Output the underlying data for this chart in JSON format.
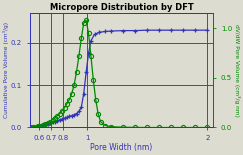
{
  "title": "Micropore Distribution by DFT",
  "xlabel": "Pore Width (nm)",
  "ylabel_left": "Cumulative Pore Volume (cm³/g)",
  "ylabel_right": "dV/dW Pore Volume (cm³/g nm)",
  "xlim": [
    0.52,
    2.05
  ],
  "ylim_left": [
    0.0,
    0.27
  ],
  "ylim_right": [
    0.0,
    1.15
  ],
  "yticks_left": [
    0.0,
    0.1,
    0.2
  ],
  "yticks_right": [
    0.0,
    0.5,
    1.0
  ],
  "xticks": [
    0.6,
    0.7,
    0.8,
    1.0,
    2.0
  ],
  "xticklabels": [
    "0.6",
    "0.7",
    "0.8",
    "1",
    "2"
  ],
  "blue_color": "#3333bb",
  "green_color": "#008800",
  "bg_color": "#dcdcd0",
  "grid_color": "#4444cc",
  "cumulative_x": [
    0.52,
    0.55,
    0.57,
    0.59,
    0.61,
    0.63,
    0.65,
    0.67,
    0.69,
    0.71,
    0.73,
    0.75,
    0.77,
    0.79,
    0.81,
    0.83,
    0.85,
    0.87,
    0.89,
    0.91,
    0.93,
    0.95,
    0.97,
    0.99,
    1.01,
    1.03,
    1.06,
    1.1,
    1.15,
    1.2,
    1.3,
    1.4,
    1.5,
    1.6,
    1.7,
    1.8,
    1.9,
    2.0
  ],
  "cumulative_y": [
    0.0,
    0.001,
    0.002,
    0.003,
    0.004,
    0.006,
    0.007,
    0.009,
    0.01,
    0.012,
    0.014,
    0.016,
    0.018,
    0.02,
    0.022,
    0.024,
    0.026,
    0.028,
    0.03,
    0.033,
    0.038,
    0.048,
    0.08,
    0.13,
    0.175,
    0.205,
    0.22,
    0.225,
    0.227,
    0.228,
    0.229,
    0.229,
    0.23,
    0.23,
    0.23,
    0.23,
    0.23,
    0.23
  ],
  "dvdw_x": [
    0.52,
    0.55,
    0.57,
    0.59,
    0.61,
    0.63,
    0.65,
    0.67,
    0.69,
    0.71,
    0.73,
    0.75,
    0.77,
    0.79,
    0.81,
    0.83,
    0.85,
    0.87,
    0.89,
    0.91,
    0.93,
    0.95,
    0.97,
    0.99,
    1.01,
    1.03,
    1.05,
    1.07,
    1.09,
    1.11,
    1.15,
    1.2,
    1.3,
    1.4,
    1.5,
    1.6,
    1.7,
    1.8,
    1.9,
    2.0
  ],
  "dvdw_y": [
    0.0,
    0.005,
    0.01,
    0.015,
    0.02,
    0.03,
    0.04,
    0.05,
    0.06,
    0.08,
    0.1,
    0.12,
    0.14,
    0.17,
    0.2,
    0.24,
    0.28,
    0.34,
    0.43,
    0.56,
    0.72,
    0.9,
    1.05,
    1.08,
    0.95,
    0.72,
    0.48,
    0.28,
    0.14,
    0.06,
    0.02,
    0.008,
    0.003,
    0.001,
    0.0,
    0.0,
    0.0,
    0.0,
    0.0,
    0.0
  ]
}
